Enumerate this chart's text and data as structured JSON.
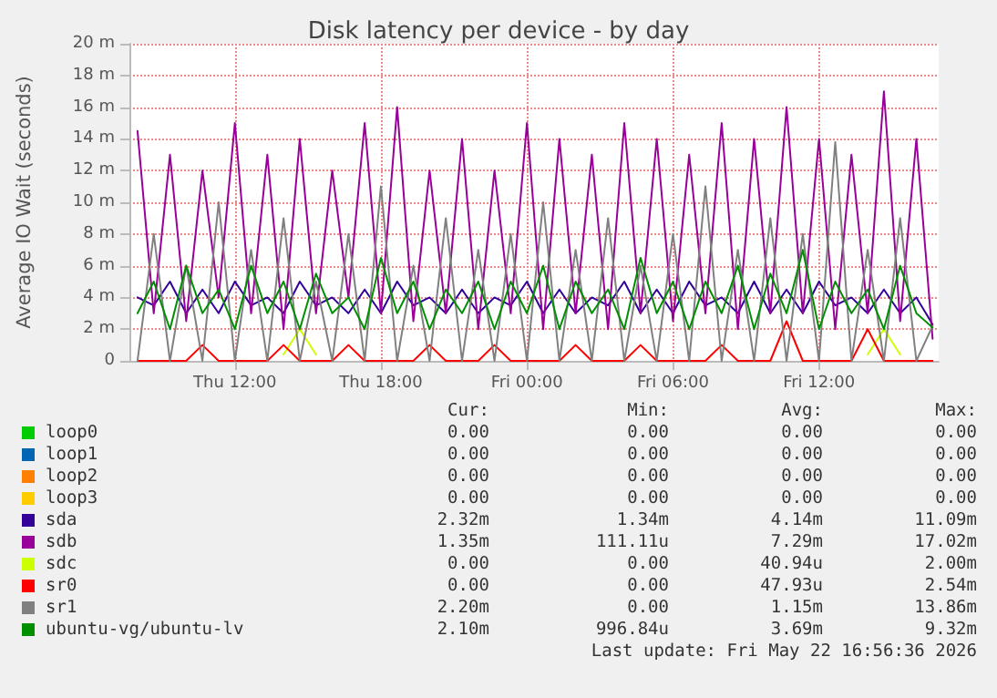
{
  "chart_data": {
    "type": "line",
    "title": "Disk latency per device - by day",
    "ylabel": "Average IO Wait (seconds)",
    "x": [
      "2026-05-21T08:00",
      "2026-05-21T08:40",
      "2026-05-21T09:20",
      "2026-05-21T10:00",
      "2026-05-21T10:40",
      "2026-05-21T11:20",
      "2026-05-21T12:00",
      "2026-05-21T12:40",
      "2026-05-21T13:20",
      "2026-05-21T14:00",
      "2026-05-21T14:40",
      "2026-05-21T15:20",
      "2026-05-21T16:00",
      "2026-05-21T16:40",
      "2026-05-21T17:20",
      "2026-05-21T18:00",
      "2026-05-21T18:40",
      "2026-05-21T19:20",
      "2026-05-21T20:00",
      "2026-05-21T20:40",
      "2026-05-21T21:20",
      "2026-05-21T22:00",
      "2026-05-21T22:40",
      "2026-05-21T23:20",
      "2026-05-22T00:00",
      "2026-05-22T00:40",
      "2026-05-22T01:20",
      "2026-05-22T02:00",
      "2026-05-22T02:40",
      "2026-05-22T03:20",
      "2026-05-22T04:00",
      "2026-05-22T04:40",
      "2026-05-22T05:20",
      "2026-05-22T06:00",
      "2026-05-22T06:40",
      "2026-05-22T07:20",
      "2026-05-22T08:00",
      "2026-05-22T08:40",
      "2026-05-22T09:20",
      "2026-05-22T10:00",
      "2026-05-22T10:40",
      "2026-05-22T11:20",
      "2026-05-22T12:00",
      "2026-05-22T12:40",
      "2026-05-22T13:20",
      "2026-05-22T14:00",
      "2026-05-22T14:40",
      "2026-05-22T15:20",
      "2026-05-22T16:00",
      "2026-05-22T16:40"
    ],
    "xlim": [
      "2026-05-21T07:40",
      "2026-05-22T16:55"
    ],
    "xticks": [
      {
        "value": "2026-05-21T12:00",
        "label": "Thu 12:00"
      },
      {
        "value": "2026-05-21T18:00",
        "label": "Thu 18:00"
      },
      {
        "value": "2026-05-22T00:00",
        "label": "Fri 00:00"
      },
      {
        "value": "2026-05-22T06:00",
        "label": "Fri 06:00"
      },
      {
        "value": "2026-05-22T12:00",
        "label": "Fri 12:00"
      }
    ],
    "ylim": [
      0,
      20
    ],
    "yticks": [
      0,
      {
        "value": 2,
        "label": "2 m"
      },
      {
        "value": 4,
        "label": "4 m"
      },
      {
        "value": 6,
        "label": "6 m"
      },
      {
        "value": 8,
        "label": "8 m"
      },
      {
        "value": 10,
        "label": "10 m"
      },
      {
        "value": 12,
        "label": "12 m"
      },
      {
        "value": 14,
        "label": "14 m"
      },
      {
        "value": 16,
        "label": "16 m"
      },
      {
        "value": 18,
        "label": "18 m"
      },
      {
        "value": 20,
        "label": "20 m"
      }
    ],
    "grid": true,
    "legend": "bottom",
    "marker": "none",
    "line_style": "solid",
    "series": [
      {
        "name": "loop0",
        "color": "#00cc00",
        "values": [
          null,
          null,
          null,
          null,
          null,
          null,
          null,
          null,
          null,
          null,
          null,
          null,
          null,
          null,
          null,
          null,
          null,
          null,
          null,
          null,
          null,
          null,
          null,
          null,
          null,
          null,
          null,
          null,
          null,
          null,
          null,
          null,
          null,
          null,
          null,
          null,
          null,
          null,
          null,
          null,
          null,
          null,
          null,
          null,
          null,
          null,
          null,
          null,
          null,
          null
        ]
      },
      {
        "name": "loop1",
        "color": "#0066b3",
        "values": [
          null,
          null,
          null,
          null,
          null,
          null,
          null,
          null,
          null,
          null,
          null,
          null,
          null,
          null,
          null,
          null,
          null,
          null,
          null,
          null,
          null,
          null,
          null,
          null,
          null,
          null,
          null,
          null,
          null,
          null,
          null,
          null,
          null,
          null,
          null,
          null,
          null,
          null,
          null,
          null,
          null,
          null,
          null,
          null,
          null,
          null,
          null,
          null,
          null,
          null
        ]
      },
      {
        "name": "loop2",
        "color": "#ff8000",
        "values": [
          null,
          null,
          null,
          null,
          null,
          null,
          null,
          null,
          null,
          null,
          null,
          null,
          null,
          null,
          null,
          null,
          null,
          null,
          null,
          null,
          null,
          null,
          null,
          null,
          null,
          null,
          null,
          null,
          null,
          null,
          null,
          null,
          null,
          null,
          null,
          null,
          null,
          null,
          null,
          null,
          null,
          null,
          null,
          null,
          null,
          null,
          null,
          null,
          null,
          null
        ]
      },
      {
        "name": "loop3",
        "color": "#ffcc00",
        "values": [
          null,
          null,
          null,
          null,
          null,
          null,
          null,
          null,
          null,
          null,
          null,
          null,
          null,
          null,
          null,
          null,
          null,
          null,
          null,
          null,
          null,
          null,
          null,
          null,
          null,
          null,
          null,
          null,
          null,
          null,
          null,
          null,
          null,
          null,
          null,
          null,
          null,
          null,
          null,
          null,
          null,
          null,
          null,
          null,
          null,
          null,
          null,
          null,
          null,
          null
        ]
      },
      {
        "name": "sda",
        "color": "#330099",
        "values": [
          4,
          3.5,
          5,
          3,
          4.5,
          3,
          5,
          3.5,
          4,
          3,
          5,
          3.5,
          4,
          3,
          4.5,
          3,
          5,
          3.5,
          4,
          3,
          4.5,
          3,
          4,
          3.5,
          5,
          3,
          4.5,
          3,
          4,
          3.5,
          5,
          3,
          4.5,
          3,
          5,
          3.5,
          4,
          3,
          5,
          3,
          4.5,
          3,
          5,
          3.5,
          4,
          3,
          4.5,
          3,
          4,
          2.3
        ]
      },
      {
        "name": "sdb",
        "color": "#990099",
        "values": [
          14.5,
          3,
          13,
          2.5,
          12,
          4,
          15,
          3,
          13,
          2,
          14,
          3,
          12,
          4,
          15,
          3,
          16,
          2.5,
          12,
          3,
          14,
          2,
          12,
          3,
          15,
          2,
          14,
          3,
          13,
          2,
          15,
          3,
          14,
          2.5,
          13,
          3,
          15,
          2,
          14,
          3,
          16,
          3,
          14,
          2,
          13,
          3,
          17,
          2.5,
          14,
          1.4
        ]
      },
      {
        "name": "sdc",
        "color": "#ccff00",
        "values": [
          null,
          null,
          null,
          null,
          null,
          null,
          null,
          null,
          null,
          0.4,
          2,
          0.4,
          null,
          null,
          null,
          null,
          null,
          null,
          null,
          null,
          null,
          null,
          null,
          null,
          null,
          null,
          null,
          null,
          null,
          null,
          null,
          null,
          null,
          null,
          null,
          null,
          null,
          null,
          null,
          null,
          null,
          null,
          null,
          null,
          null,
          0.4,
          2,
          0.4,
          null,
          null
        ]
      },
      {
        "name": "sr0",
        "color": "#ff0000",
        "values": [
          0,
          0,
          0,
          0,
          1,
          0,
          0,
          0,
          0,
          1,
          0,
          0,
          0,
          1,
          0,
          0,
          0,
          0,
          1,
          0,
          0,
          0,
          1,
          0,
          0,
          0,
          0,
          1,
          0,
          0,
          0,
          1,
          0,
          0,
          0,
          0,
          1,
          0,
          0,
          0,
          2.5,
          0,
          0,
          0,
          0,
          2,
          0,
          0,
          0,
          0
        ]
      },
      {
        "name": "sr1",
        "color": "#808080",
        "values": [
          0,
          8,
          0,
          6,
          0,
          10,
          0,
          7,
          0,
          9,
          0,
          5,
          0,
          8,
          0,
          11,
          0,
          6,
          0,
          9,
          0,
          7,
          0,
          8,
          0,
          10,
          0,
          7,
          0,
          9,
          0,
          6,
          0,
          8,
          0,
          11,
          0,
          7,
          0,
          9,
          0,
          8,
          0,
          13.8,
          0,
          7,
          0,
          9,
          0,
          2.2
        ]
      },
      {
        "name": "ubuntu-vg/ubuntu-lv",
        "color": "#008f00",
        "values": [
          3,
          5,
          2,
          6,
          3,
          4.5,
          2,
          6,
          3,
          5,
          2,
          5.5,
          3,
          4,
          2,
          6.5,
          3,
          5,
          2,
          4.5,
          3,
          5,
          2,
          5,
          3,
          6,
          2,
          5,
          3,
          4.5,
          2,
          6.5,
          3,
          5,
          2,
          5,
          3,
          6,
          2,
          5.5,
          3,
          7,
          2,
          5,
          3,
          4.5,
          2,
          6,
          3,
          2.1
        ]
      }
    ],
    "annotations": [
      "Cur:",
      "Min:",
      "Avg:",
      "Max:",
      "0.00",
      "0.00",
      "0.00",
      "0.00",
      "0.00",
      "0.00",
      "0.00",
      "0.00",
      "0.00",
      "0.00",
      "0.00",
      "0.00",
      "0.00",
      "0.00",
      "0.00",
      "0.00",
      "2.32m",
      "1.34m",
      "4.14m",
      "11.09m",
      "1.35m",
      "111.11u",
      "7.29m",
      "17.02m",
      "0.00",
      "0.00",
      "40.94u",
      "2.00m",
      "0.00",
      "0.00",
      "47.93u",
      "2.54m",
      "2.20m",
      "0.00",
      "1.15m",
      "13.86m",
      "2.10m",
      "996.84u",
      "3.69m",
      "9.32m",
      "Last update: Fri May 22 16:56:36 2026"
    ]
  }
}
